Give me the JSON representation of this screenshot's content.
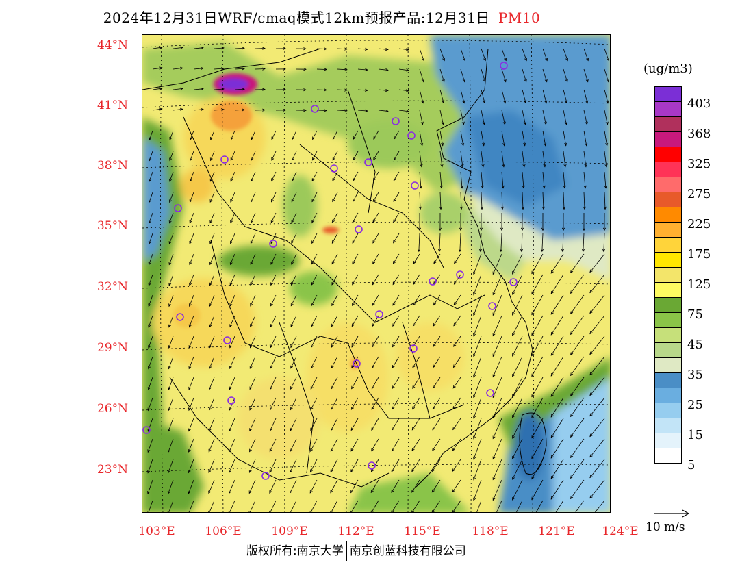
{
  "title": {
    "main": "2024年12月31日WRF/cmaq模式12km预报产品:12月31日",
    "pollutant": "PM10"
  },
  "axes": {
    "lat_labels": [
      "44°N",
      "41°N",
      "38°N",
      "35°N",
      "32°N",
      "29°N",
      "26°N",
      "23°N"
    ],
    "lon_labels": [
      "103°E",
      "106°E",
      "109°E",
      "112°E",
      "115°E",
      "118°E",
      "121°E",
      "124°E"
    ]
  },
  "legend": {
    "unit": "(ug/m3)",
    "ticks": [
      "403",
      "368",
      "325",
      "275",
      "225",
      "175",
      "125",
      "75",
      "45",
      "35",
      "25",
      "15",
      "5"
    ],
    "colors": [
      "#7b2fd6",
      "#a838c7",
      "#b0305c",
      "#c8197c",
      "#ff0000",
      "#ff3357",
      "#ff6b6b",
      "#e85a2a",
      "#ff8a00",
      "#ffb030",
      "#ffd43a",
      "#ffe600",
      "#f3e56a",
      "#fefb62",
      "#6aa834",
      "#8ac448",
      "#c6e07a",
      "#b8d88a",
      "#dfe9c4",
      "#4a8ec6",
      "#6aaee0",
      "#96cdef",
      "#c2e4f7",
      "#e4f3fb",
      "#ffffff"
    ]
  },
  "wind_reference": {
    "label": "10 m/s"
  },
  "copyright": {
    "left": "版权所有:南京大学",
    "right": "南京创蓝科技有限公司"
  },
  "palette": {
    "yellow": "#f2ea74",
    "deep_yellow": "#f6df66",
    "green": "#8ec35a",
    "dark_green": "#5a9e3a",
    "pale_green": "#dfe9c4",
    "blue": "#4a8ec6",
    "light_blue": "#8cc6ea",
    "orange": "#f5a13a",
    "magenta": "#c8197c",
    "purple": "#7b2fd6",
    "accent_red": "#e8262a"
  }
}
